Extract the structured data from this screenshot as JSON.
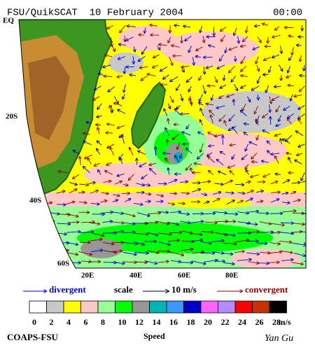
{
  "header": {
    "title": "FSU/QuikSCAT  10 February 2004",
    "time": "00:00"
  },
  "map": {
    "lat_labels": [
      "EQ",
      "20S",
      "40S",
      "60S"
    ],
    "lon_labels": [
      "20E",
      "40E",
      "60E",
      "80E"
    ]
  },
  "legend": {
    "divergent": "divergent",
    "scale": "scale",
    "scale_value": "10 m/s",
    "convergent": "convergent"
  },
  "colorbar": {
    "colors": [
      "#ffffff",
      "#c8c8c8",
      "#ffff00",
      "#ffc8c8",
      "#96ff96",
      "#00ff00",
      "#969696",
      "#00b4b4",
      "#3c96ff",
      "#0000c8",
      "#ff64ff",
      "#b48cff",
      "#ff0000",
      "#c83200",
      "#000000"
    ],
    "ticks": [
      0,
      2,
      4,
      6,
      8,
      10,
      12,
      14,
      16,
      18,
      20,
      22,
      24,
      26,
      28
    ],
    "unit": "m/s",
    "title": "Speed"
  },
  "footer": {
    "credit": "COAPS-FSU",
    "author": "Yan Gu"
  }
}
